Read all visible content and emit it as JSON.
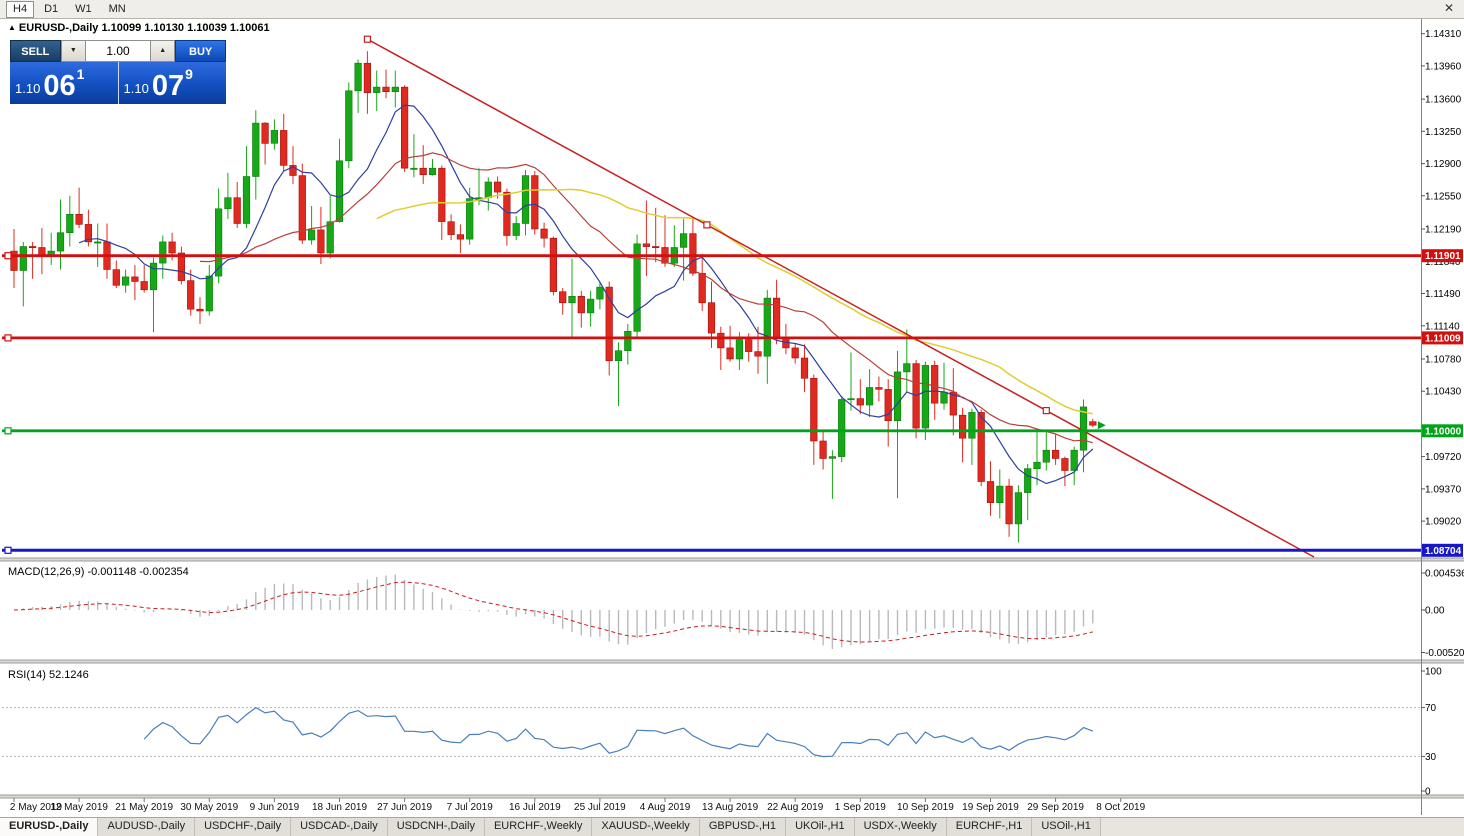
{
  "toolbar": {
    "timeframes": [
      "H4",
      "D1",
      "W1",
      "MN"
    ],
    "active": "H4"
  },
  "icons": {
    "symbol_arrow": "▲",
    "close": "✕",
    "spin_up": "▲",
    "spin_down": "▼"
  },
  "quote_header": {
    "text": "EURUSD-,Daily 1.10099 1.10130 1.10039 1.10061"
  },
  "trade_panel": {
    "sell_label": "SELL",
    "buy_label": "BUY",
    "volume": "1.00",
    "bid": {
      "base": "1.10",
      "big": "06",
      "sup": "1"
    },
    "ask": {
      "base": "1.10",
      "big": "07",
      "sup": "9"
    }
  },
  "tabs": {
    "active_index": 0,
    "items": [
      "EURUSD-,Daily",
      "AUDUSD-,Daily",
      "USDCHF-,Daily",
      "USDCAD-,Daily",
      "USDCNH-,Daily",
      "EURCHF-,Weekly",
      "XAUUSD-,Weekly",
      "GBPUSD-,H1",
      "UKOil-,H1",
      "USDX-,Weekly",
      "EURCHF-,H1",
      "USOil-,H1"
    ]
  },
  "chart_data": {
    "type": "candlestick",
    "symbol": "EURUSD-,Daily",
    "up_color": "#17a817",
    "down_color": "#e02a20",
    "up_border": "#0d7a0d",
    "down_border": "#a01010",
    "price_ticks": [
      1.1431,
      1.1396,
      1.136,
      1.1325,
      1.129,
      1.1255,
      1.1219,
      1.1184,
      1.1149,
      1.1114,
      1.1078,
      1.1043,
      1.0972,
      1.0937,
      1.0902
    ],
    "date_labels": [
      "2 May 2019",
      "12 May 2019",
      "21 May 2019",
      "30 May 2019",
      "9 Jun 2019",
      "18 Jun 2019",
      "27 Jun 2019",
      "7 Jul 2019",
      "16 Jul 2019",
      "25 Jul 2019",
      "4 Aug 2019",
      "13 Aug 2019",
      "22 Aug 2019",
      "1 Sep 2019",
      "10 Sep 2019",
      "19 Sep 2019",
      "29 Sep 2019",
      "8 Oct 2019"
    ],
    "hlines": [
      {
        "price": 1.11901,
        "label": "1.11901",
        "color": "#d20f0f"
      },
      {
        "price": 1.11009,
        "label": "1.11009",
        "color": "#d20f0f"
      },
      {
        "price": 1.1,
        "label": "1.10000",
        "color": "#00a41a"
      },
      {
        "price": 1.08704,
        "label": "1.08704",
        "color": "#1717c8"
      }
    ],
    "trendline": {
      "bar1": 38,
      "price1": 1.1425,
      "bar2": 111,
      "price2": 1.1022,
      "ray": true,
      "color": "#c81e1e"
    },
    "moving_averages": [
      {
        "period": 8,
        "color": "#2e3f9e"
      },
      {
        "period": 21,
        "color": "#b8403a"
      },
      {
        "period": 40,
        "color": "#e0cd30"
      }
    ],
    "last_price": 1.10061,
    "ohlc": [
      [
        1.1195,
        1.1219,
        1.1155,
        1.1174
      ],
      [
        1.1174,
        1.1205,
        1.1135,
        1.12
      ],
      [
        1.12,
        1.1205,
        1.1165,
        1.1199
      ],
      [
        1.1199,
        1.122,
        1.117,
        1.119
      ],
      [
        1.119,
        1.1215,
        1.118,
        1.1195
      ],
      [
        1.1195,
        1.1251,
        1.1175,
        1.1215
      ],
      [
        1.1215,
        1.1255,
        1.12,
        1.1235
      ],
      [
        1.1235,
        1.1264,
        1.122,
        1.1224
      ],
      [
        1.1224,
        1.124,
        1.12,
        1.1205
      ],
      [
        1.1205,
        1.1225,
        1.1178,
        1.1205
      ],
      [
        1.1205,
        1.1225,
        1.1165,
        1.1175
      ],
      [
        1.1175,
        1.1185,
        1.1155,
        1.1158
      ],
      [
        1.1158,
        1.1175,
        1.115,
        1.1167
      ],
      [
        1.1167,
        1.118,
        1.1142,
        1.1162
      ],
      [
        1.1162,
        1.118,
        1.115,
        1.1153
      ],
      [
        1.1153,
        1.1188,
        1.1107,
        1.1182
      ],
      [
        1.1182,
        1.1212,
        1.1165,
        1.1205
      ],
      [
        1.1205,
        1.1215,
        1.1185,
        1.1193
      ],
      [
        1.1193,
        1.12,
        1.1159,
        1.1163
      ],
      [
        1.1163,
        1.1175,
        1.1125,
        1.1132
      ],
      [
        1.1132,
        1.1145,
        1.1116,
        1.113
      ],
      [
        1.113,
        1.118,
        1.1125,
        1.1168
      ],
      [
        1.1168,
        1.1263,
        1.116,
        1.1241
      ],
      [
        1.1241,
        1.128,
        1.123,
        1.1253
      ],
      [
        1.1253,
        1.127,
        1.122,
        1.1225
      ],
      [
        1.1225,
        1.1309,
        1.122,
        1.1276
      ],
      [
        1.1276,
        1.1348,
        1.1251,
        1.1334
      ],
      [
        1.1334,
        1.1335,
        1.1289,
        1.1312
      ],
      [
        1.1312,
        1.1338,
        1.1305,
        1.1326
      ],
      [
        1.1326,
        1.1344,
        1.1282,
        1.1288
      ],
      [
        1.1288,
        1.1309,
        1.1268,
        1.1277
      ],
      [
        1.1277,
        1.129,
        1.1203,
        1.1207
      ],
      [
        1.1207,
        1.1244,
        1.1202,
        1.1218
      ],
      [
        1.1218,
        1.1243,
        1.1181,
        1.1193
      ],
      [
        1.1193,
        1.1255,
        1.1187,
        1.1227
      ],
      [
        1.1227,
        1.1317,
        1.1226,
        1.1293
      ],
      [
        1.1293,
        1.1378,
        1.1285,
        1.1369
      ],
      [
        1.1369,
        1.1403,
        1.1345,
        1.1399
      ],
      [
        1.1399,
        1.1412,
        1.1344,
        1.1367
      ],
      [
        1.1367,
        1.1391,
        1.1347,
        1.1373
      ],
      [
        1.1373,
        1.1392,
        1.1361,
        1.1368
      ],
      [
        1.1368,
        1.1391,
        1.1351,
        1.1373
      ],
      [
        1.1373,
        1.1375,
        1.1281,
        1.1285
      ],
      [
        1.1285,
        1.1322,
        1.1275,
        1.1285
      ],
      [
        1.1285,
        1.131,
        1.1268,
        1.1278
      ],
      [
        1.1278,
        1.1295,
        1.1277,
        1.1285
      ],
      [
        1.1285,
        1.1288,
        1.1207,
        1.1227
      ],
      [
        1.1227,
        1.1235,
        1.1207,
        1.1213
      ],
      [
        1.1213,
        1.1224,
        1.1193,
        1.1208
      ],
      [
        1.1208,
        1.1264,
        1.1202,
        1.1252
      ],
      [
        1.1252,
        1.1285,
        1.1245,
        1.1253
      ],
      [
        1.1253,
        1.1275,
        1.1239,
        1.127
      ],
      [
        1.127,
        1.1276,
        1.1252,
        1.1259
      ],
      [
        1.1259,
        1.1263,
        1.1201,
        1.1212
      ],
      [
        1.1212,
        1.1233,
        1.1207,
        1.1225
      ],
      [
        1.1225,
        1.1283,
        1.1212,
        1.1277
      ],
      [
        1.1277,
        1.1282,
        1.1213,
        1.1219
      ],
      [
        1.1219,
        1.1226,
        1.1199,
        1.1209
      ],
      [
        1.1209,
        1.1211,
        1.1147,
        1.1151
      ],
      [
        1.1151,
        1.1155,
        1.1126,
        1.1139
      ],
      [
        1.1139,
        1.1187,
        1.1101,
        1.1146
      ],
      [
        1.1146,
        1.1152,
        1.1112,
        1.1128
      ],
      [
        1.1128,
        1.1152,
        1.1113,
        1.1143
      ],
      [
        1.1143,
        1.1162,
        1.1132,
        1.1156
      ],
      [
        1.1156,
        1.1162,
        1.106,
        1.1076
      ],
      [
        1.1076,
        1.1096,
        1.1027,
        1.1087
      ],
      [
        1.1087,
        1.1116,
        1.1072,
        1.1108
      ],
      [
        1.1108,
        1.1213,
        1.1101,
        1.1203
      ],
      [
        1.1203,
        1.125,
        1.1168,
        1.12
      ],
      [
        1.12,
        1.1242,
        1.1183,
        1.1199
      ],
      [
        1.1199,
        1.1234,
        1.1178,
        1.1182
      ],
      [
        1.1182,
        1.1223,
        1.1178,
        1.1199
      ],
      [
        1.1199,
        1.123,
        1.1163,
        1.1214
      ],
      [
        1.1214,
        1.123,
        1.1168,
        1.1171
      ],
      [
        1.1171,
        1.1192,
        1.113,
        1.1139
      ],
      [
        1.1139,
        1.1162,
        1.109,
        1.1106
      ],
      [
        1.1106,
        1.1113,
        1.1066,
        1.109
      ],
      [
        1.109,
        1.1114,
        1.1075,
        1.1078
      ],
      [
        1.1078,
        1.1107,
        1.1066,
        1.1099
      ],
      [
        1.1099,
        1.1106,
        1.1075,
        1.1086
      ],
      [
        1.1086,
        1.1113,
        1.1062,
        1.1081
      ],
      [
        1.1081,
        1.1153,
        1.1051,
        1.1144
      ],
      [
        1.1144,
        1.1164,
        1.1094,
        1.1101
      ],
      [
        1.1101,
        1.1116,
        1.1083,
        1.109
      ],
      [
        1.109,
        1.1095,
        1.1073,
        1.1079
      ],
      [
        1.1079,
        1.1094,
        1.1042,
        1.1057
      ],
      [
        1.1057,
        1.1061,
        1.0963,
        1.0989
      ],
      [
        1.0989,
        1.0999,
        1.0958,
        1.097
      ],
      [
        1.097,
        1.0979,
        1.0926,
        1.0972
      ],
      [
        1.0972,
        1.1038,
        1.0966,
        1.1034
      ],
      [
        1.1034,
        1.1085,
        1.1022,
        1.1035
      ],
      [
        1.1035,
        1.1056,
        1.1018,
        1.1028
      ],
      [
        1.1028,
        1.1067,
        1.1015,
        1.1047
      ],
      [
        1.1047,
        1.1059,
        1.1032,
        1.1045
      ],
      [
        1.1045,
        1.1056,
        1.0983,
        1.1011
      ],
      [
        1.1011,
        1.1087,
        1.0927,
        1.1064
      ],
      [
        1.1064,
        1.111,
        1.1042,
        1.1073
      ],
      [
        1.1073,
        1.1077,
        1.0992,
        1.1003
      ],
      [
        1.1003,
        1.1075,
        1.099,
        1.1071
      ],
      [
        1.1071,
        1.1076,
        1.1012,
        1.103
      ],
      [
        1.103,
        1.1074,
        1.1023,
        1.1042
      ],
      [
        1.1042,
        1.1068,
        1.0995,
        1.1017
      ],
      [
        1.1017,
        1.1025,
        1.0966,
        1.0992
      ],
      [
        1.0992,
        1.1024,
        1.0963,
        1.102
      ],
      [
        1.102,
        1.1023,
        1.094,
        1.0945
      ],
      [
        1.0945,
        1.0967,
        1.0908,
        1.0922
      ],
      [
        1.0922,
        1.0958,
        1.0905,
        1.094
      ],
      [
        1.094,
        1.0948,
        1.0885,
        1.0899
      ],
      [
        1.0899,
        1.0941,
        1.0879,
        1.0933
      ],
      [
        1.0933,
        1.0964,
        1.0903,
        1.0959
      ],
      [
        1.0959,
        1.0999,
        1.0941,
        1.0966
      ],
      [
        1.0966,
        1.0999,
        1.0957,
        1.0979
      ],
      [
        1.0979,
        1.0996,
        1.0963,
        1.097
      ],
      [
        1.097,
        1.0972,
        1.094,
        1.0957
      ],
      [
        1.0957,
        1.0983,
        1.0941,
        1.0979
      ],
      [
        1.0979,
        1.1034,
        1.0955,
        1.1026
      ],
      [
        1.10099,
        1.1013,
        1.10039,
        1.10061
      ]
    ],
    "macd": {
      "label": "MACD(12,26,9) -0.001148 -0.002354",
      "fast": 12,
      "slow": 26,
      "signal": 9,
      "axis": [
        {
          "value": 0.004536,
          "label": "0.004536"
        },
        {
          "value": 0,
          "label": "0.00"
        },
        {
          "value": -0.005205,
          "label": "-0.005205"
        }
      ],
      "bar_color": "#b9b9b9",
      "signal_color": "#c81e1e"
    },
    "rsi": {
      "label": "RSI(14) 52.1246",
      "period": 14,
      "axis": [
        {
          "value": 100,
          "label": "100"
        },
        {
          "value": 70,
          "label": "70"
        },
        {
          "value": 30,
          "label": "30"
        },
        {
          "value": 0,
          "label": "0"
        }
      ],
      "levels": [
        70,
        30
      ],
      "color": "#4a7ebc"
    }
  }
}
